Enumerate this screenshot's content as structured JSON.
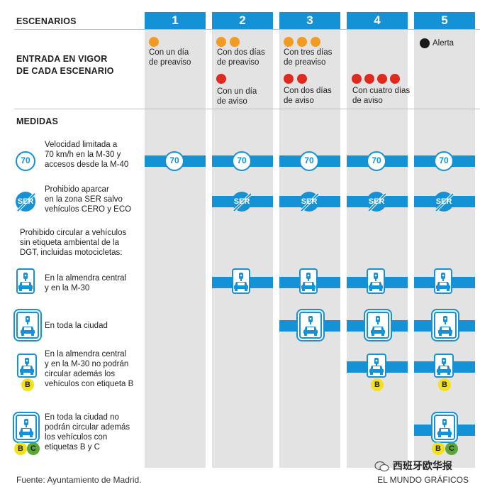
{
  "header": {
    "scenarios_label": "ESCENARIOS",
    "columns": [
      "1",
      "2",
      "3",
      "4",
      "5"
    ]
  },
  "entry": {
    "label_line1": "ENTRADA EN VIGOR",
    "label_line2": "DE CADA ESCENARIO",
    "col1_preaviso": [
      "Con un día",
      "de preaviso"
    ],
    "col2_preaviso": [
      "Con dos días",
      "de preaviso"
    ],
    "col2_aviso": [
      "Con un día",
      "de aviso"
    ],
    "col3_preaviso": [
      "Con tres días",
      "de preaviso"
    ],
    "col3_aviso": [
      "Con dos días",
      "de aviso"
    ],
    "col4_aviso": [
      "Con cuatro días",
      "de aviso"
    ],
    "col5_alerta": "Alerta"
  },
  "measures": {
    "label": "MEDIDAS",
    "speed": {
      "icon_text": "70",
      "desc": [
        "Velocidad limitada a",
        "70 km/h en la M-30 y",
        "accesos desde la M-40"
      ]
    },
    "ser": {
      "icon_text": "SER",
      "desc": [
        "Prohibido aparcar",
        "en la zona SER salvo",
        "vehículos CERO y ECO"
      ]
    },
    "circulation_intro": [
      "Prohibido circular a vehículos",
      "sin etiqueta ambiental de la",
      "DGT, incluidas motocicletas:"
    ],
    "almendra": [
      "En la almendra central",
      "y en la M-30"
    ],
    "ciudad": [
      "En toda la ciudad"
    ],
    "almendra_b": [
      "En la almendra central",
      "y en la M-30 no podrán",
      "circular además los",
      "vehículos con etiqueta B"
    ],
    "ciudad_bc": [
      "En toda la ciudad no",
      "podrán circular además",
      "los vehículos con",
      "etiquetas B y C"
    ],
    "badge_b": "B",
    "badge_c": "C"
  },
  "footer": {
    "source": "Fuente: Ayuntamiento de Madrid.",
    "credit": "EL MUNDO GRÁFICOS",
    "watermark": "西班牙欧华报"
  },
  "colors": {
    "blue": "#1591d5",
    "orange": "#f39a22",
    "red": "#e02a1f",
    "column_bg": "#e3e3e3",
    "badge_b": "#f5e11a",
    "badge_c": "#5aa83a"
  }
}
